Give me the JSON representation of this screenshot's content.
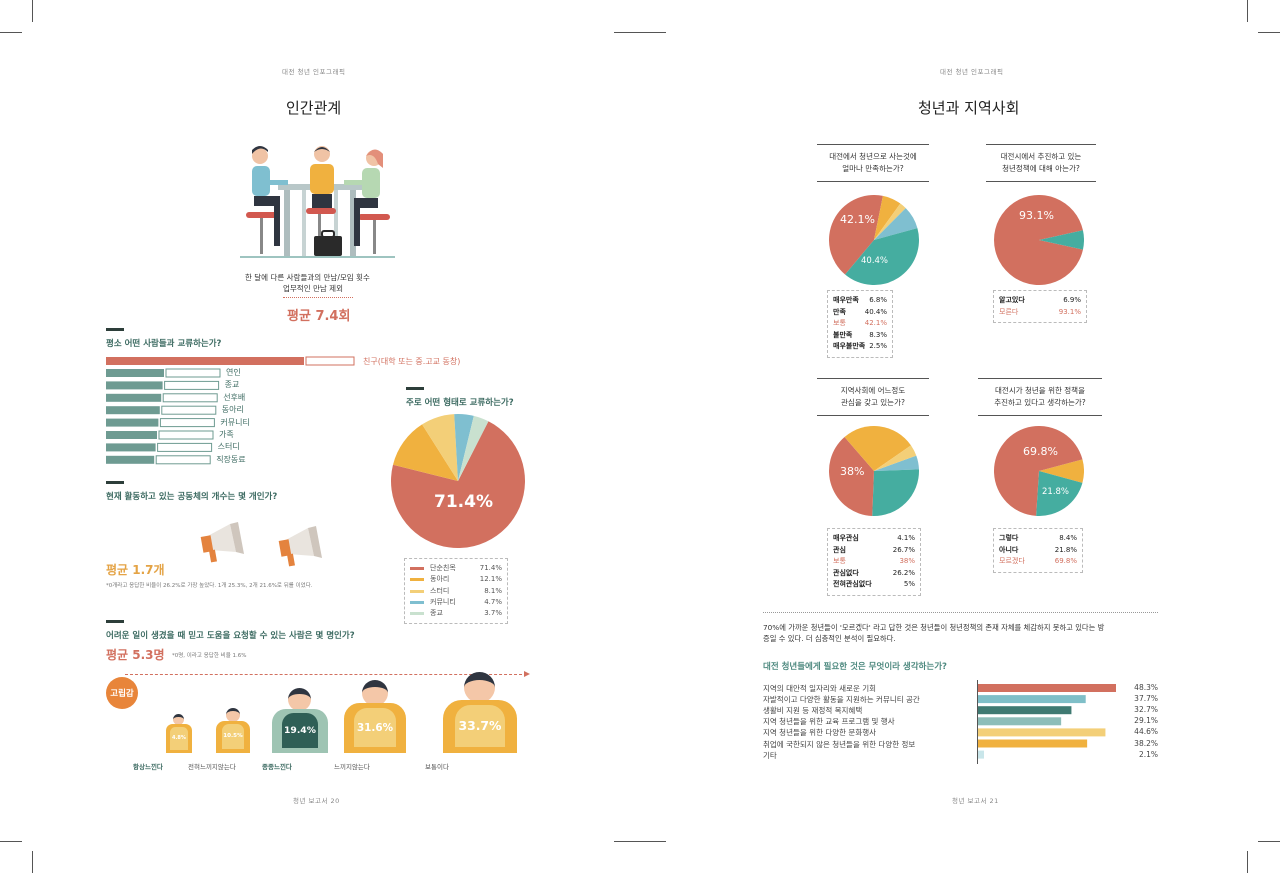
{
  "left": {
    "header": "대전 청년 인포그래픽",
    "title": "인간관계",
    "meeting_caption_1": "한 달에 다른 사람들과의 만남/모임 횟수",
    "meeting_caption_2": "업무적인 만남 제외",
    "meeting_avg": "평균 7.4회",
    "q1": "평소 어떤 사람들과 교류하는가?",
    "friend_label": "친구(대학 또는 중.고교 동창)",
    "bar_labels": [
      "연인",
      "종교",
      "선후배",
      "동아리",
      "커뮤니티",
      "가족",
      "스터디",
      "직장동료"
    ],
    "q_form": "주로 어떤 형태로 교류하는가?",
    "pie_label": "71.4%",
    "pie_legend": [
      {
        "name": "단순친목",
        "value": "71.4%",
        "color": "#d2705f"
      },
      {
        "name": "동아리",
        "value": "12.1%",
        "color": "#f0b13f"
      },
      {
        "name": "스터디",
        "value": "8.1%",
        "color": "#f3cf78"
      },
      {
        "name": "커뮤니티",
        "value": "4.7%",
        "color": "#7fbfd0"
      },
      {
        "name": "종교",
        "value": "3.7%",
        "color": "#c9e1cf"
      }
    ],
    "q2": "현재 활동하고 있는 공동체의 개수는 몇 개인가?",
    "community_avg": "평균 1.7개",
    "community_note": "*0개라고 응답한 비율이 26.2%로 가장 높았다. 1개 25.3%, 2개 21.6%로 뒤를 이었다.",
    "q3": "어려운 일이 생겼을 때 믿고 도움을 요청할 수 있는 사람은 몇 명인가?",
    "help_avg": "평균 5.3명",
    "help_note": "*0명, 이라고 응답한 비율 1.6%",
    "loneliness_badge": "고립감",
    "loneliness": [
      {
        "label": "항상느낀다",
        "value": "4.8%",
        "bold": true
      },
      {
        "label": "전혀느끼지않는다",
        "value": "10.5%",
        "bold": false
      },
      {
        "label": "종종느낀다",
        "value": "19.4%",
        "bold": true
      },
      {
        "label": "느끼지않는다",
        "value": "31.6%",
        "bold": false
      },
      {
        "label": "보통이다",
        "value": "33.7%",
        "bold": false
      }
    ],
    "footer": "청년 보고서 20"
  },
  "right": {
    "header": "대전 청년 인포그래픽",
    "title": "청년과 지역사회",
    "q_a": [
      "대전에서 청년으로 사는것에",
      "얼마나 만족하는가?"
    ],
    "q_b": [
      "대전시에서 추진하고 있는",
      "청년정책에 대해 아는가?"
    ],
    "q_c": [
      "지역사회에 어느정도",
      "관심을 갖고 있는가?"
    ],
    "q_d": [
      "대전시가 청년을 위한 정책을",
      "추진하고 있다고 생각하는가?"
    ],
    "pie_a_labels": [
      "42.1%",
      "40.4%"
    ],
    "pie_b_labels": [
      "93.1%"
    ],
    "pie_c_labels": [
      "38%"
    ],
    "pie_d_labels": [
      "69.8%",
      "21.8%"
    ],
    "legend_a": [
      {
        "name": "매우만족",
        "value": "6.8%",
        "hl": false
      },
      {
        "name": "만족",
        "value": "40.4%",
        "hl": false
      },
      {
        "name": "보통",
        "value": "42.1%",
        "hl": true
      },
      {
        "name": "불만족",
        "value": "8.3%",
        "hl": false
      },
      {
        "name": "매우불만족",
        "value": "2.5%",
        "hl": false
      }
    ],
    "legend_b": [
      {
        "name": "알고있다",
        "value": "6.9%",
        "hl": false
      },
      {
        "name": "모른다",
        "value": "93.1%",
        "hl": true
      }
    ],
    "legend_c": [
      {
        "name": "매우관심",
        "value": "4.1%",
        "hl": false
      },
      {
        "name": "관심",
        "value": "26.7%",
        "hl": false
      },
      {
        "name": "보통",
        "value": "38%",
        "hl": true
      },
      {
        "name": "관심없다",
        "value": "26.2%",
        "hl": false
      },
      {
        "name": "전혀관심없다",
        "value": "5%",
        "hl": false
      }
    ],
    "legend_d": [
      {
        "name": "그렇다",
        "value": "8.4%",
        "hl": false
      },
      {
        "name": "아니다",
        "value": "21.8%",
        "hl": false
      },
      {
        "name": "모르겠다",
        "value": "69.8%",
        "hl": true
      }
    ],
    "paragraph_1": "70%에 가까운 청년들이 '모르겠다' 라고 답한 것은 청년들이 청년정책의 존재 자체를 체감하지 못하고 있다는 방",
    "paragraph_2": "증일 수 있다. 더 심층적인 분석이 필요하다.",
    "q_need": "대전 청년들에게 필요한 것은 무엇이라 생각하는가?",
    "footer": "청년 보고서 21"
  },
  "chart_data": [
    {
      "type": "bar",
      "orientation": "horizontal",
      "title": "평소 어떤 사람들과 교류하는가?",
      "categories": [
        "친구(대학 또는 중.고교 동창)",
        "연인",
        "종교",
        "선후배",
        "동아리",
        "커뮤니티",
        "가족",
        "스터디",
        "직장동료"
      ],
      "values": [
        1.0,
        0.24,
        0.24,
        0.22,
        0.22,
        0.21,
        0.2,
        0.19,
        0.19
      ]
    },
    {
      "type": "pie",
      "title": "주로 어떤 형태로 교류하는가?",
      "categories": [
        "단순친목",
        "동아리",
        "스터디",
        "커뮤니티",
        "종교"
      ],
      "values": [
        71.4,
        12.1,
        8.1,
        4.7,
        3.7
      ]
    },
    {
      "type": "bar",
      "title": "고립감",
      "categories": [
        "항상느낀다",
        "전혀느끼지않는다",
        "종종느낀다",
        "느끼지않는다",
        "보통이다"
      ],
      "values": [
        4.8,
        10.5,
        19.4,
        31.6,
        33.7
      ]
    },
    {
      "type": "pie",
      "title": "대전에서 청년으로 사는것에 얼마나 만족하는가?",
      "categories": [
        "매우만족",
        "만족",
        "보통",
        "불만족",
        "매우불만족"
      ],
      "values": [
        6.8,
        40.4,
        42.1,
        8.3,
        2.5
      ]
    },
    {
      "type": "pie",
      "title": "대전시에서 추진하고 있는 청년정책에 대해 아는가?",
      "categories": [
        "알고있다",
        "모른다"
      ],
      "values": [
        6.9,
        93.1
      ]
    },
    {
      "type": "pie",
      "title": "지역사회에 어느정도 관심을 갖고 있는가?",
      "categories": [
        "매우관심",
        "관심",
        "보통",
        "관심없다",
        "전혀관심없다"
      ],
      "values": [
        4.1,
        26.7,
        38,
        26.2,
        5
      ]
    },
    {
      "type": "pie",
      "title": "대전시가 청년을 위한 정책을 추진하고 있다고 생각하는가?",
      "categories": [
        "그렇다",
        "아니다",
        "모르겠다"
      ],
      "values": [
        8.4,
        21.8,
        69.8
      ]
    },
    {
      "type": "bar",
      "orientation": "horizontal",
      "title": "대전 청년들에게 필요한 것은 무엇이라 생각하는가?",
      "categories": [
        "지역의 대안적 일자리와 새로운 기회",
        "자발적이고 다양한 활동을 지원하는 커뮤니티 공간",
        "생활비 지원 등 재정적 복지혜택",
        "지역 청년들을 위한 교육 프로그램 및 행사",
        "지역 청년들을 위한 다양한 문화행사",
        "취업에 국한되지 않은 청년들을 위한 다양한 정보",
        "기타"
      ],
      "values": [
        48.3,
        37.7,
        32.7,
        29.1,
        44.6,
        38.2,
        2.1
      ],
      "value_labels": [
        "48.3%",
        "37.7%",
        "32.7%",
        "29.1%",
        "44.6%",
        "38.2%",
        "2.1%"
      ],
      "colors": [
        "#d2705f",
        "#7fbfc8",
        "#3f7a72",
        "#8dbdb8",
        "#f3cf78",
        "#f0b13f",
        "#c9e6ea"
      ]
    }
  ]
}
